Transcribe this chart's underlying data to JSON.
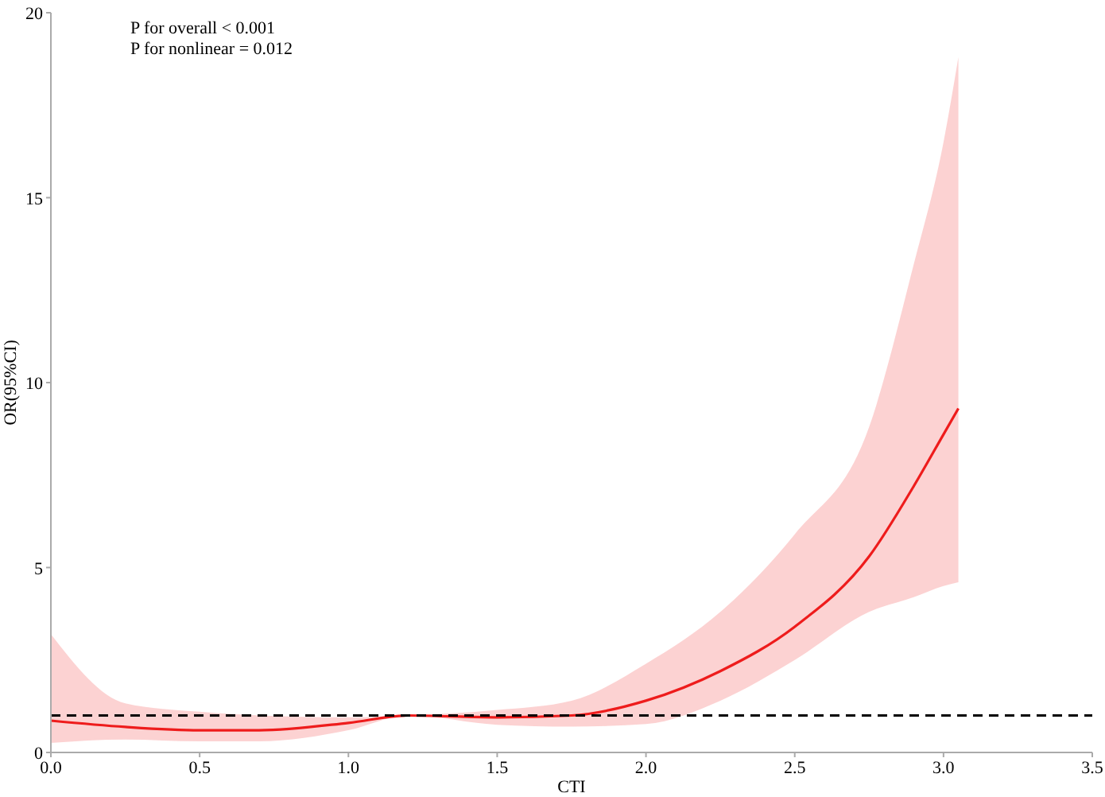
{
  "chart_data": {
    "type": "line",
    "xlabel": "CTI",
    "ylabel": "OR(95%CI)",
    "annotations": [
      "P for overall < 0.001",
      "P for nonlinear = 0.012"
    ],
    "xlim": [
      0,
      3.5
    ],
    "xticks": [
      {
        "value": 0,
        "label": "0.0"
      },
      0.5,
      {
        "value": 1,
        "label": "1.0"
      },
      1.5,
      {
        "value": 2,
        "label": "2.0"
      },
      2.5,
      {
        "value": 3,
        "label": "3.0"
      },
      3.5
    ],
    "ylim": [
      0,
      20
    ],
    "yticks": [
      0,
      5,
      10,
      15,
      20
    ],
    "grid": false,
    "ref_lines": [
      {
        "axis": "y",
        "value": 1,
        "color": "#000000",
        "line_style": "dashed"
      }
    ],
    "series": [
      {
        "color": "#ee1c1c",
        "x": [
          0,
          0.25,
          0.5,
          0.7,
          1.0,
          1.2,
          1.5,
          1.75,
          2.0,
          2.25,
          2.5,
          2.75,
          2.9,
          3.0,
          3.05
        ],
        "values": [
          0.86,
          0.69,
          0.6,
          0.6,
          0.8,
          1.0,
          0.95,
          1.0,
          1.4,
          2.2,
          3.4,
          5.3,
          7.2,
          8.6,
          9.3
        ],
        "lower": [
          0.26,
          0.35,
          0.3,
          0.3,
          0.6,
          1.0,
          0.75,
          0.7,
          0.77,
          1.4,
          2.5,
          3.8,
          4.2,
          4.5,
          4.6
        ],
        "upper": [
          3.2,
          1.33,
          1.1,
          1.0,
          0.95,
          1.0,
          1.15,
          1.4,
          2.4,
          3.8,
          5.9,
          8.8,
          13.2,
          16.5,
          18.8
        ]
      }
    ]
  }
}
